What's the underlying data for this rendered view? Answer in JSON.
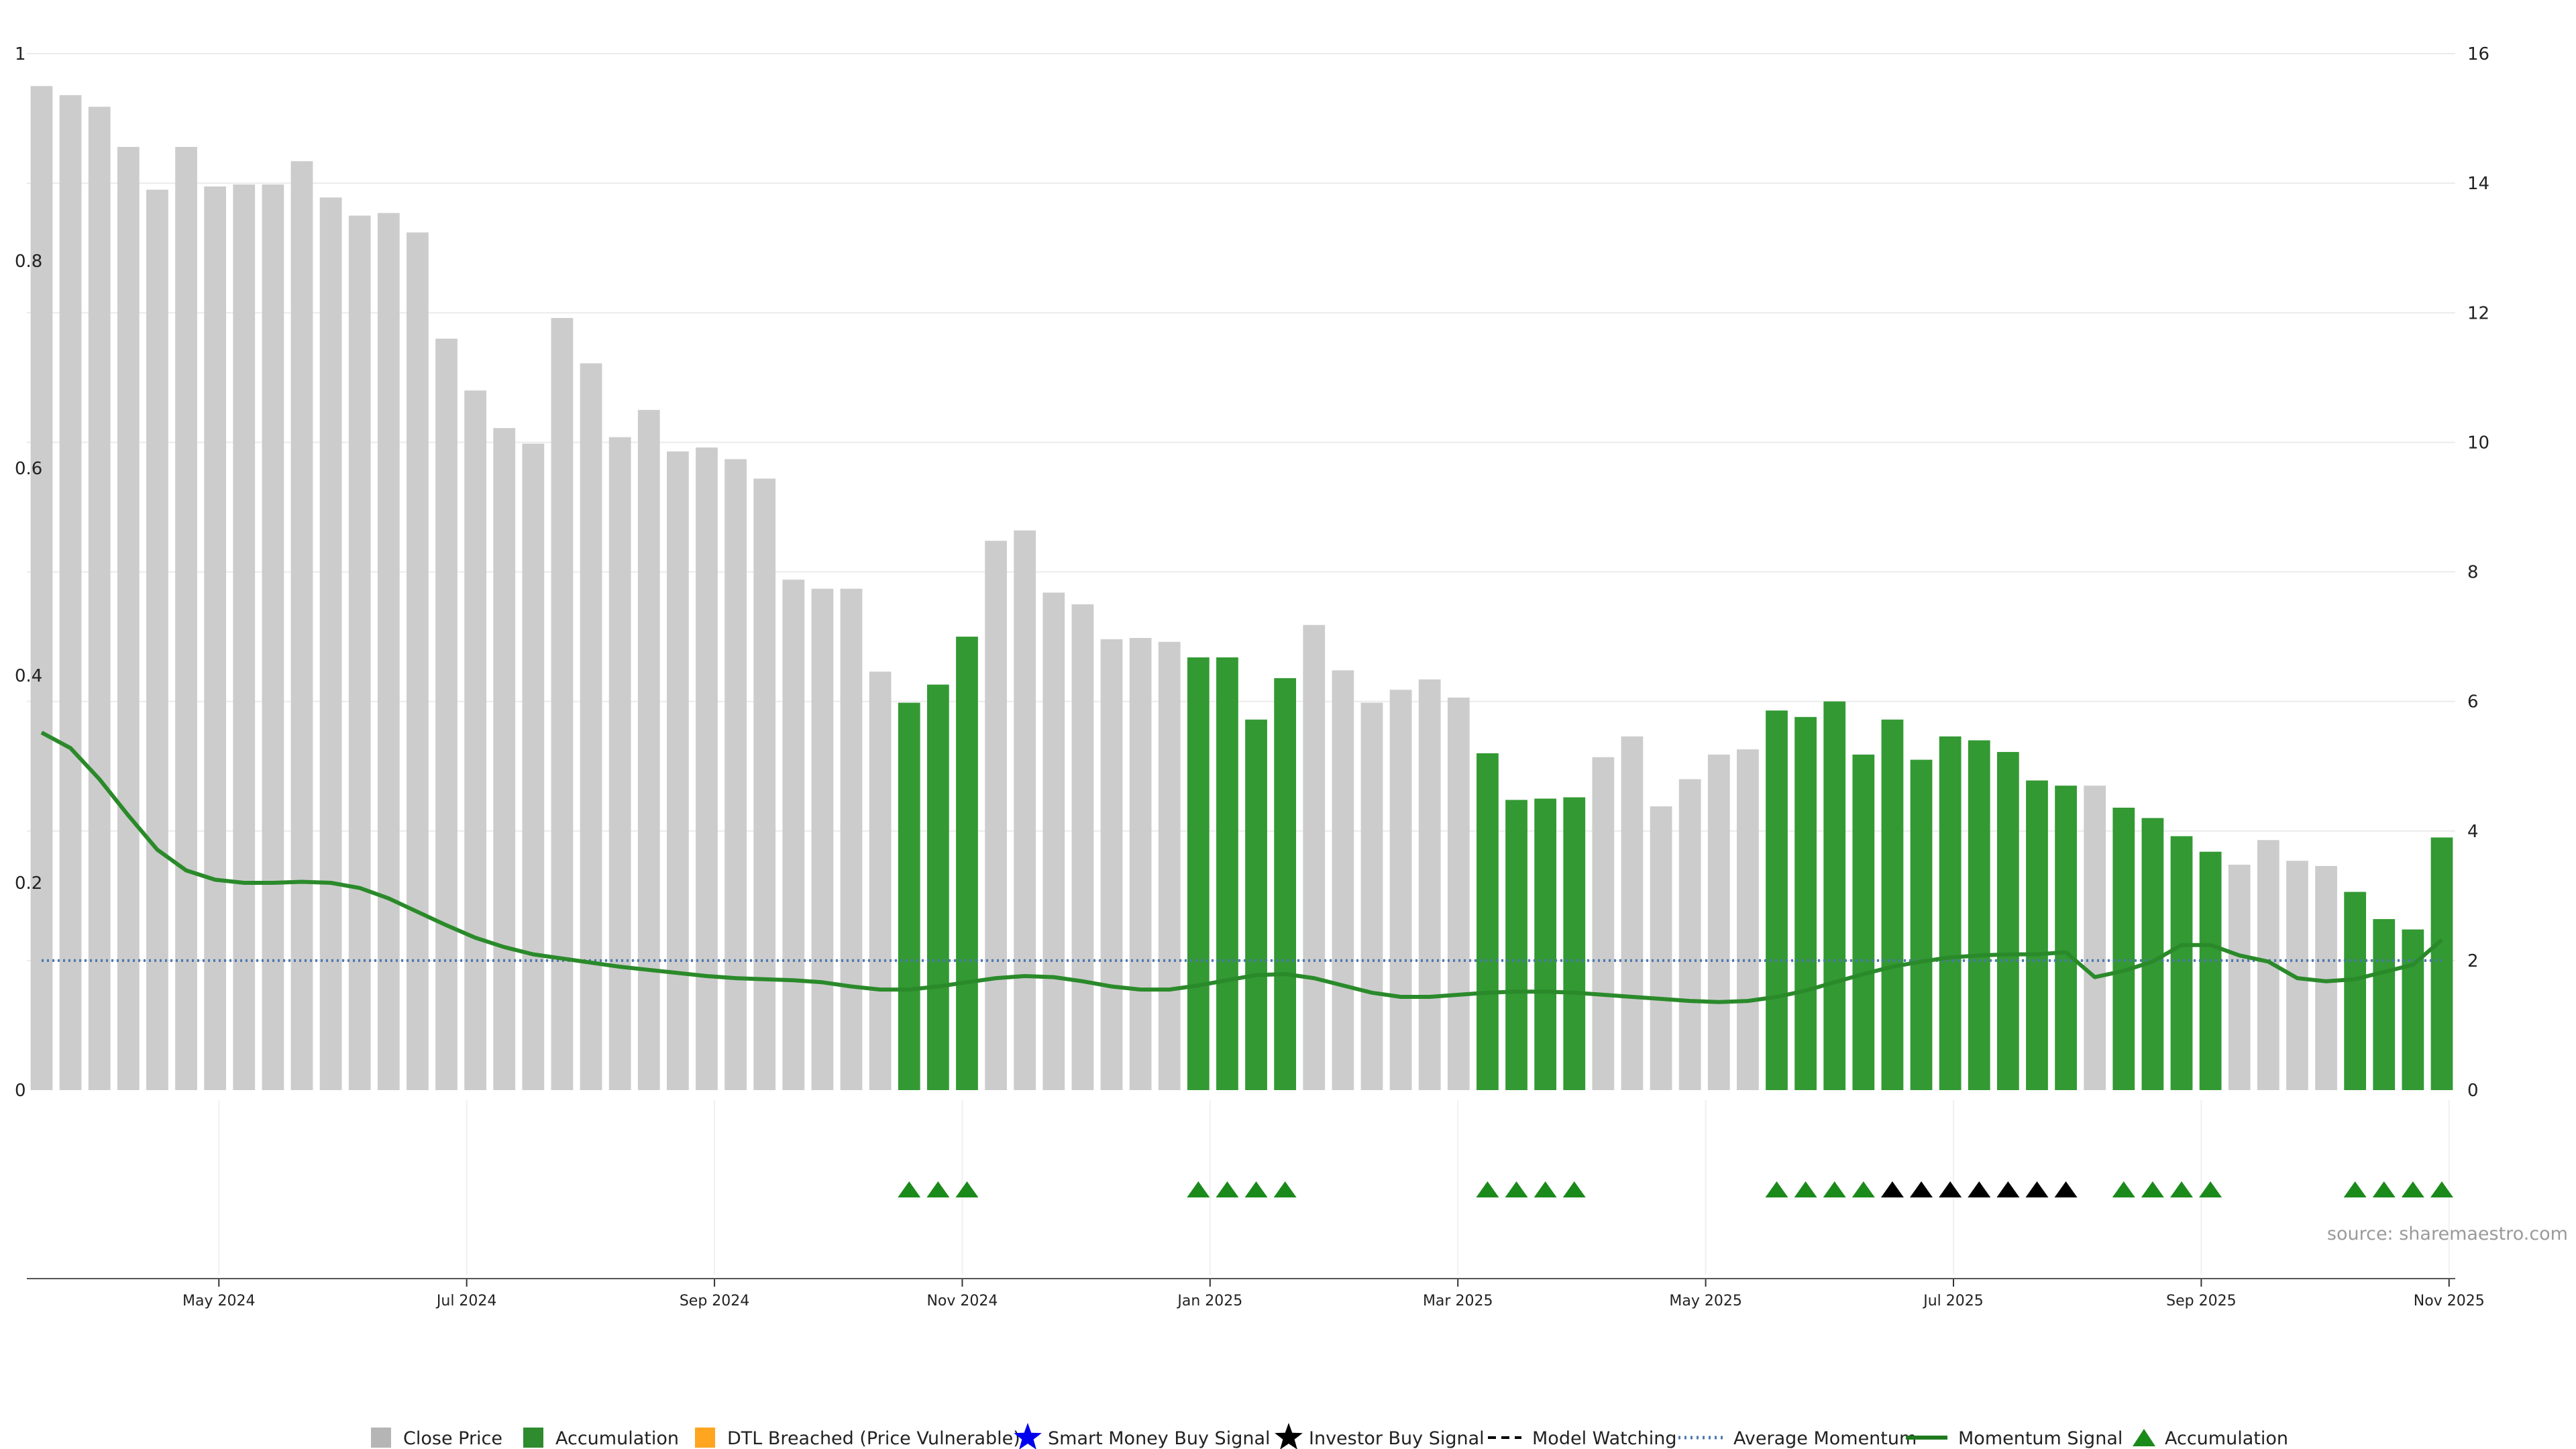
{
  "chart_data": {
    "type": "bar",
    "left_axis": {
      "ticks": [
        "0",
        "0.2",
        "0.4",
        "0.6",
        "0.8",
        "1"
      ],
      "range": [
        0,
        1
      ]
    },
    "right_axis": {
      "ticks": [
        "0",
        "2",
        "4",
        "6",
        "8",
        "10",
        "12",
        "14",
        "16"
      ],
      "range": [
        0,
        16
      ]
    },
    "x_axis": {
      "start_month_index": 2.45,
      "month_span": 19.6,
      "ticks": [
        {
          "label": "May 2024",
          "m": 4
        },
        {
          "label": "Jul 2024",
          "m": 6
        },
        {
          "label": "Sep 2024",
          "m": 8
        },
        {
          "label": "Nov 2024",
          "m": 10
        },
        {
          "label": "Jan 2025",
          "m": 12
        },
        {
          "label": "Mar 2025",
          "m": 14
        },
        {
          "label": "May 2025",
          "m": 16
        },
        {
          "label": "Jul 2025",
          "m": 18
        },
        {
          "label": "Sep 2025",
          "m": 20
        },
        {
          "label": "Nov 2025",
          "m": 22
        }
      ]
    },
    "colors": {
      "close": "#cccccc",
      "accumulation": "#339933",
      "dtl": "#ffa500",
      "smart_money": "#0000ee",
      "investor": "#000000",
      "momentum": "#2a8a2a",
      "average": "#4a78b0",
      "marker_green": "#1a8a1a",
      "marker_black": "#000000"
    },
    "bars": {
      "close_price": [
        15.5,
        15.36,
        15.18,
        14.56,
        13.9,
        14.56,
        13.95,
        13.98,
        13.98,
        14.34,
        13.78,
        13.5,
        13.54,
        13.24,
        11.6,
        10.8,
        10.22,
        9.98,
        11.92,
        11.22,
        10.08,
        10.5,
        9.86,
        9.92,
        9.74,
        9.44,
        7.88,
        7.74,
        7.74,
        6.46,
        5.98,
        6.26,
        7.0,
        8.48,
        8.64,
        7.68,
        7.5,
        6.96,
        6.98,
        6.92,
        6.68,
        6.68,
        5.72,
        6.36,
        7.18,
        6.48,
        5.98,
        6.18,
        6.34,
        6.06,
        5.2,
        4.48,
        4.5,
        4.52,
        5.14,
        5.46,
        4.38,
        4.8,
        5.18,
        5.26,
        5.86,
        5.76,
        6.0,
        5.18,
        5.72,
        5.1,
        5.46,
        5.4,
        5.22,
        4.78,
        4.7,
        4.7,
        4.36,
        4.2,
        3.92,
        3.68,
        3.48,
        3.86,
        3.54,
        3.46,
        3.06,
        2.64,
        2.48,
        3.9
      ],
      "accumulation_flags": [
        0,
        0,
        0,
        0,
        0,
        0,
        0,
        0,
        0,
        0,
        0,
        0,
        0,
        0,
        0,
        0,
        0,
        0,
        0,
        0,
        0,
        0,
        0,
        0,
        0,
        0,
        0,
        0,
        0,
        0,
        1,
        1,
        1,
        0,
        0,
        0,
        0,
        0,
        0,
        0,
        1,
        1,
        1,
        1,
        0,
        0,
        0,
        0,
        0,
        0,
        1,
        1,
        1,
        1,
        0,
        0,
        0,
        0,
        0,
        0,
        1,
        1,
        1,
        1,
        1,
        1,
        1,
        1,
        1,
        1,
        1,
        0,
        1,
        1,
        1,
        1,
        0,
        0,
        0,
        0,
        1,
        1,
        1,
        1
      ]
    },
    "momentum_signal": [
      0.345,
      0.33,
      0.3,
      0.265,
      0.232,
      0.212,
      0.203,
      0.2,
      0.2,
      0.201,
      0.2,
      0.195,
      0.185,
      0.172,
      0.159,
      0.147,
      0.138,
      0.131,
      0.127,
      0.123,
      0.119,
      0.116,
      0.113,
      0.11,
      0.108,
      0.107,
      0.106,
      0.104,
      0.1,
      0.097,
      0.097,
      0.1,
      0.104,
      0.108,
      0.11,
      0.109,
      0.105,
      0.1,
      0.097,
      0.097,
      0.101,
      0.106,
      0.111,
      0.112,
      0.108,
      0.101,
      0.094,
      0.09,
      0.09,
      0.092,
      0.094,
      0.095,
      0.095,
      0.094,
      0.092,
      0.09,
      0.088,
      0.086,
      0.085,
      0.086,
      0.09,
      0.096,
      0.104,
      0.112,
      0.119,
      0.124,
      0.128,
      0.13,
      0.131,
      0.131,
      0.133,
      0.109,
      0.115,
      0.124,
      0.14,
      0.14,
      0.13,
      0.124,
      0.108,
      0.105,
      0.107,
      0.114,
      0.121,
      0.145
    ],
    "average_momentum": 0.125,
    "signal_markers": [
      {
        "i": 30,
        "type": "accumulation"
      },
      {
        "i": 31,
        "type": "accumulation"
      },
      {
        "i": 32,
        "type": "accumulation"
      },
      {
        "i": 40,
        "type": "accumulation"
      },
      {
        "i": 41,
        "type": "accumulation"
      },
      {
        "i": 42,
        "type": "accumulation"
      },
      {
        "i": 43,
        "type": "accumulation"
      },
      {
        "i": 50,
        "type": "accumulation"
      },
      {
        "i": 51,
        "type": "accumulation"
      },
      {
        "i": 52,
        "type": "accumulation"
      },
      {
        "i": 53,
        "type": "accumulation"
      },
      {
        "i": 60,
        "type": "accumulation"
      },
      {
        "i": 61,
        "type": "accumulation"
      },
      {
        "i": 62,
        "type": "accumulation"
      },
      {
        "i": 63,
        "type": "accumulation"
      },
      {
        "i": 64,
        "type": "investor"
      },
      {
        "i": 65,
        "type": "investor"
      },
      {
        "i": 66,
        "type": "investor"
      },
      {
        "i": 67,
        "type": "investor"
      },
      {
        "i": 68,
        "type": "investor"
      },
      {
        "i": 69,
        "type": "investor"
      },
      {
        "i": 70,
        "type": "investor"
      },
      {
        "i": 72,
        "type": "accumulation"
      },
      {
        "i": 73,
        "type": "accumulation"
      },
      {
        "i": 74,
        "type": "accumulation"
      },
      {
        "i": 75,
        "type": "accumulation"
      },
      {
        "i": 80,
        "type": "accumulation"
      },
      {
        "i": 81,
        "type": "accumulation"
      },
      {
        "i": 82,
        "type": "accumulation"
      },
      {
        "i": 83,
        "type": "accumulation"
      }
    ],
    "legend": [
      {
        "label": "Close Price",
        "kind": "square",
        "color": "#b5b5b5"
      },
      {
        "label": "Accumulation",
        "kind": "square",
        "color": "#2e8b2e"
      },
      {
        "label": "DTL Breached (Price Vulnerable)",
        "kind": "square",
        "color": "#ffa520"
      },
      {
        "label": "Smart Money Buy Signal",
        "kind": "star",
        "color": "#0000ee"
      },
      {
        "label": "Investor Buy Signal",
        "kind": "star",
        "color": "#000000"
      },
      {
        "label": "Model Watching",
        "kind": "dash",
        "color": "#000000"
      },
      {
        "label": "Average Momentum",
        "kind": "dotted",
        "color": "#4a78b0"
      },
      {
        "label": "Momentum Signal",
        "kind": "line",
        "color": "#1f7a1f"
      },
      {
        "label": "Accumulation",
        "kind": "triangle",
        "color": "#1a8a1a"
      }
    ],
    "source": "source: sharemaestro.com"
  }
}
